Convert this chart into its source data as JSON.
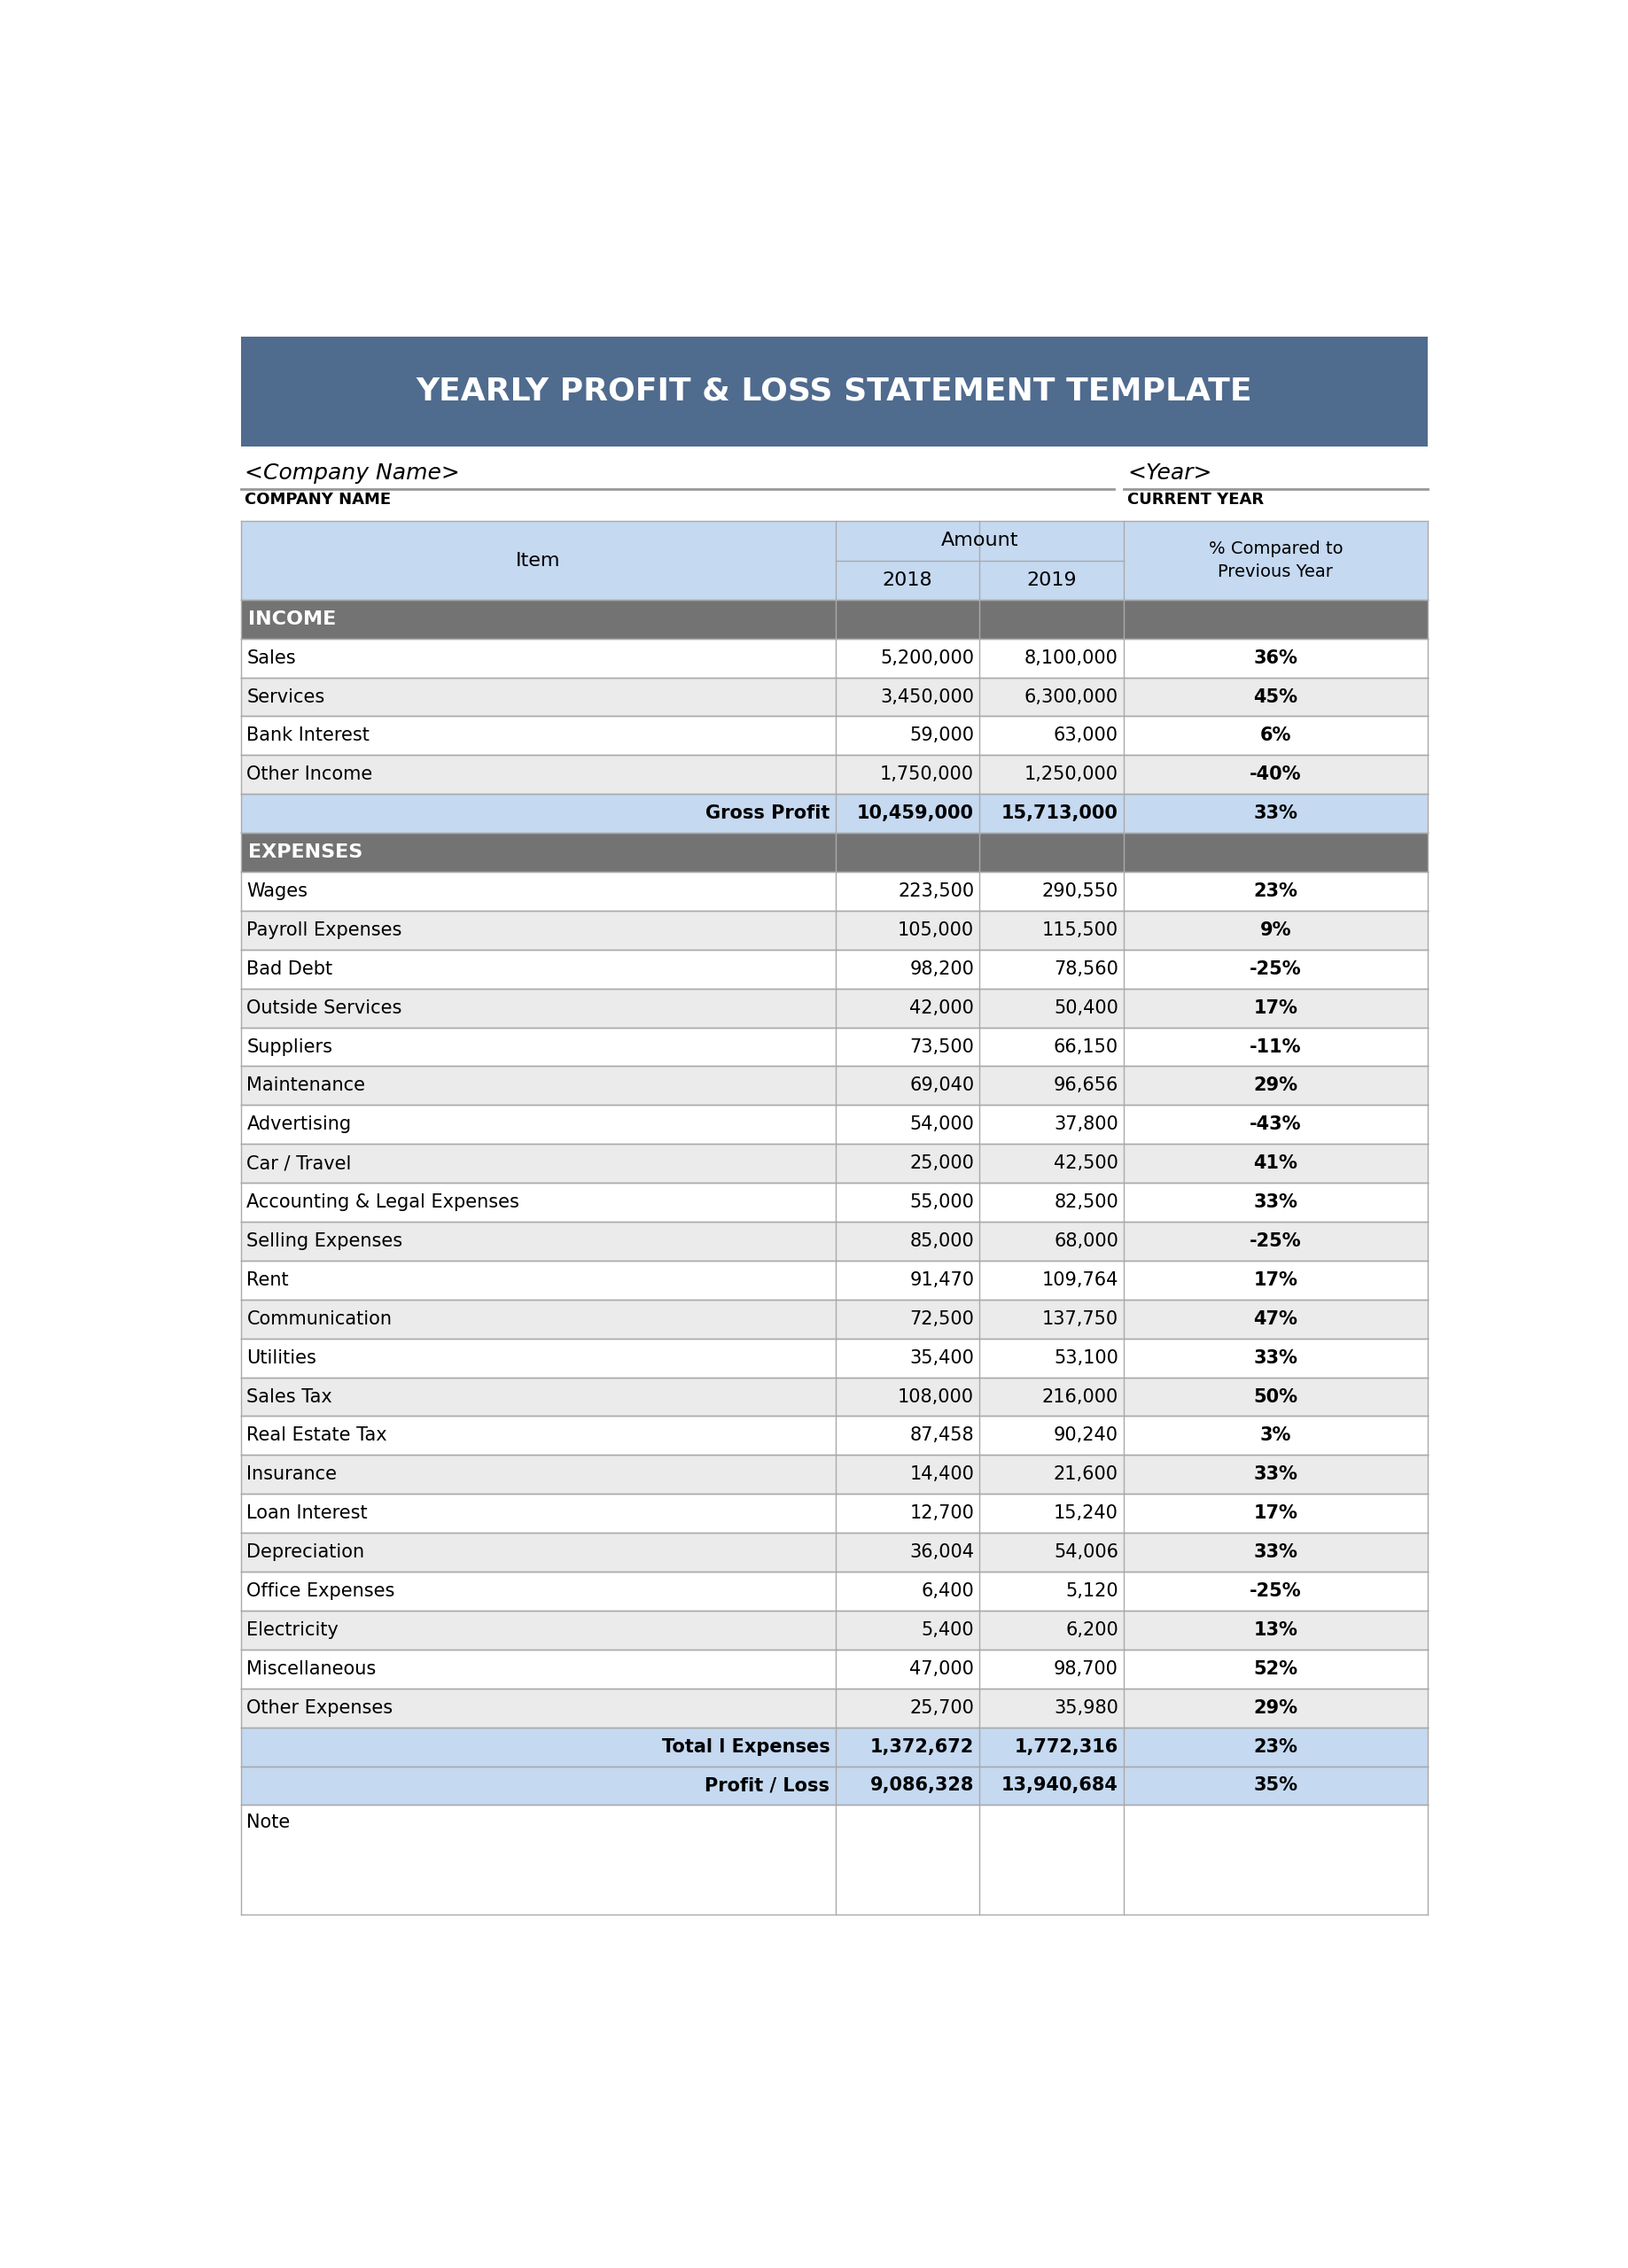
{
  "title": "YEARLY PROFIT & LOSS STATEMENT TEMPLATE",
  "title_bg": "#4f6b8e",
  "title_color": "#ffffff",
  "company_label": "<Company Name>",
  "company_sublabel": "COMPANY NAME",
  "year_label": "<Year>",
  "year_sublabel": "CURRENT YEAR",
  "header_bg": "#c5d9f1",
  "section_bg": "#737373",
  "section_color": "#ffffff",
  "subtotal_bg": "#c5d9f1",
  "row_bg_odd": "#ebebeb",
  "row_bg_even": "#ffffff",
  "income_section": "INCOME",
  "expenses_section": "EXPENSES",
  "income_rows": [
    [
      "Sales",
      "5,200,000",
      "8,100,000",
      "36%"
    ],
    [
      "Services",
      "3,450,000",
      "6,300,000",
      "45%"
    ],
    [
      "Bank Interest",
      "59,000",
      "63,000",
      "6%"
    ],
    [
      "Other Income",
      "1,750,000",
      "1,250,000",
      "-40%"
    ]
  ],
  "gross_profit_row": [
    "Gross Profit",
    "10,459,000",
    "15,713,000",
    "33%"
  ],
  "expense_rows": [
    [
      "Wages",
      "223,500",
      "290,550",
      "23%"
    ],
    [
      "Payroll Expenses",
      "105,000",
      "115,500",
      "9%"
    ],
    [
      "Bad Debt",
      "98,200",
      "78,560",
      "-25%"
    ],
    [
      "Outside Services",
      "42,000",
      "50,400",
      "17%"
    ],
    [
      "Suppliers",
      "73,500",
      "66,150",
      "-11%"
    ],
    [
      "Maintenance",
      "69,040",
      "96,656",
      "29%"
    ],
    [
      "Advertising",
      "54,000",
      "37,800",
      "-43%"
    ],
    [
      "Car / Travel",
      "25,000",
      "42,500",
      "41%"
    ],
    [
      "Accounting & Legal Expenses",
      "55,000",
      "82,500",
      "33%"
    ],
    [
      "Selling Expenses",
      "85,000",
      "68,000",
      "-25%"
    ],
    [
      "Rent",
      "91,470",
      "109,764",
      "17%"
    ],
    [
      "Communication",
      "72,500",
      "137,750",
      "47%"
    ],
    [
      "Utilities",
      "35,400",
      "53,100",
      "33%"
    ],
    [
      "Sales Tax",
      "108,000",
      "216,000",
      "50%"
    ],
    [
      "Real Estate Tax",
      "87,458",
      "90,240",
      "3%"
    ],
    [
      "Insurance",
      "14,400",
      "21,600",
      "33%"
    ],
    [
      "Loan Interest",
      "12,700",
      "15,240",
      "17%"
    ],
    [
      "Depreciation",
      "36,004",
      "54,006",
      "33%"
    ],
    [
      "Office Expenses",
      "6,400",
      "5,120",
      "-25%"
    ],
    [
      "Electricity",
      "5,400",
      "6,200",
      "13%"
    ],
    [
      "Miscellaneous",
      "47,000",
      "98,700",
      "52%"
    ],
    [
      "Other Expenses",
      "25,700",
      "35,980",
      "29%"
    ]
  ],
  "total_expenses_row": [
    "Total l Expenses",
    "1,372,672",
    "1,772,316",
    "23%"
  ],
  "profit_loss_row": [
    "Profit / Loss",
    "9,086,328",
    "13,940,684",
    "35%"
  ],
  "note_label": "Note"
}
